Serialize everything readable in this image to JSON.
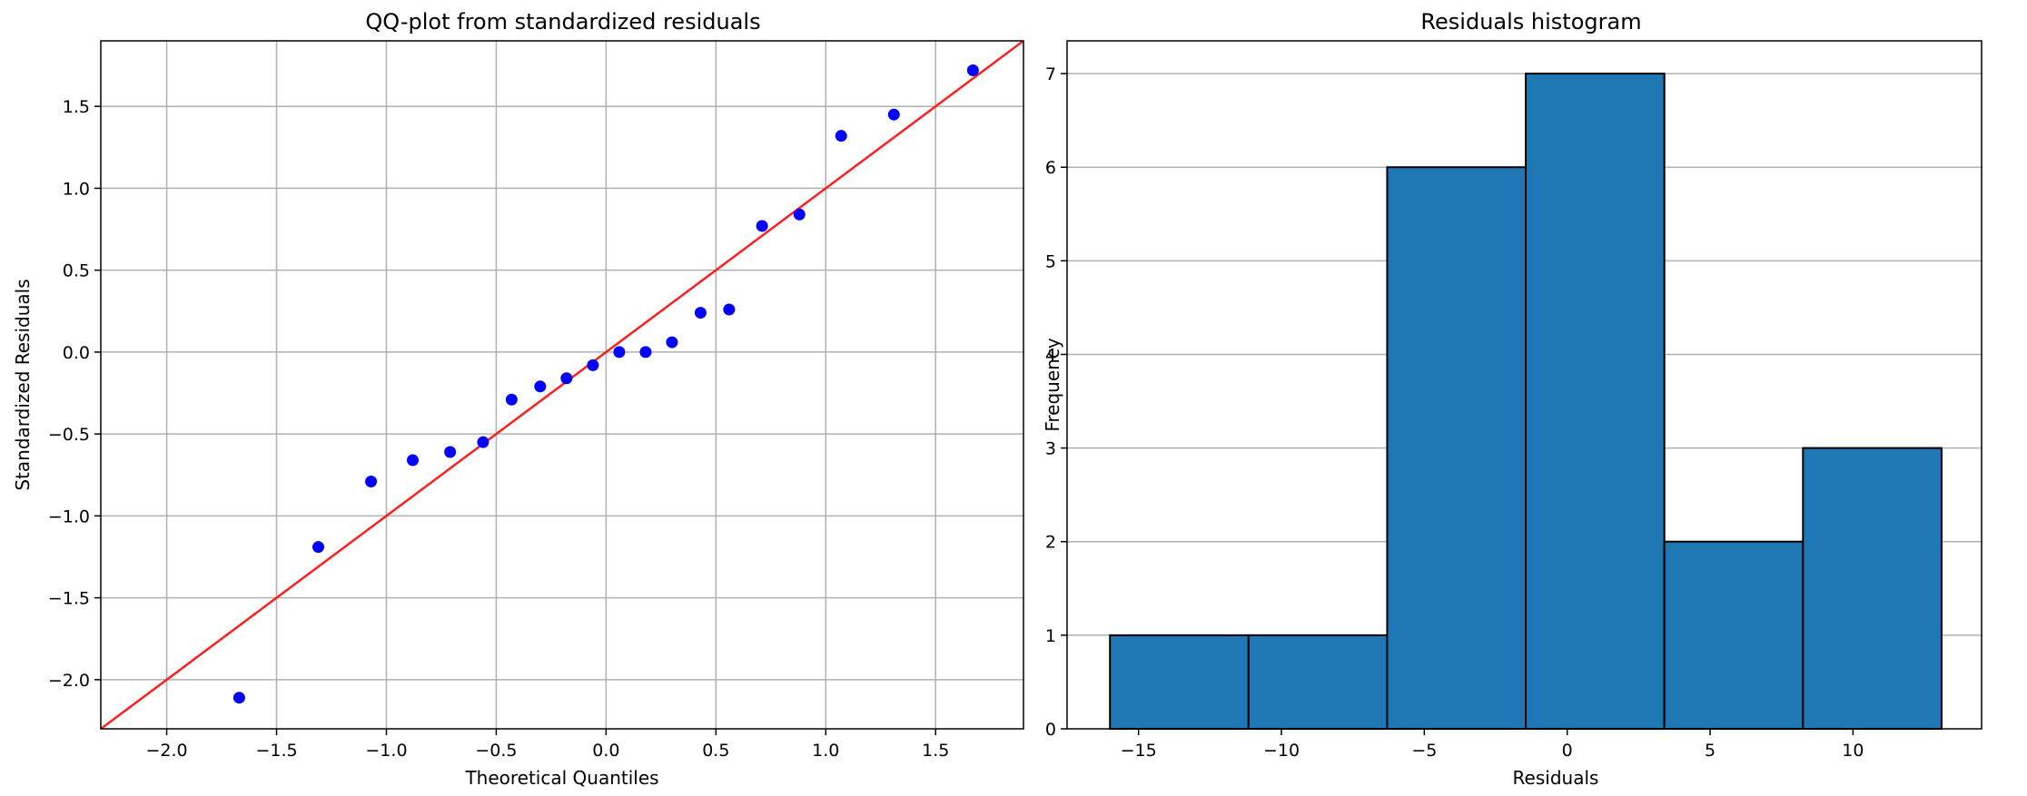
{
  "chart_data": [
    {
      "type": "scatter",
      "title": "QQ-plot from standardized residuals",
      "xlabel": "Theoretical Quantiles",
      "ylabel": "Standardized Residuals",
      "xlim": [
        -2.3,
        1.9
      ],
      "ylim": [
        -2.3,
        1.9
      ],
      "xticks": [
        -2.0,
        -1.5,
        -1.0,
        -0.5,
        0.0,
        0.5,
        1.0,
        1.5
      ],
      "xtick_labels": [
        "−2.0",
        "−1.5",
        "−1.0",
        "−0.5",
        "0.0",
        "0.5",
        "1.0",
        "1.5"
      ],
      "yticks": [
        -2.0,
        -1.5,
        -1.0,
        -0.5,
        0.0,
        0.5,
        1.0,
        1.5
      ],
      "ytick_labels": [
        "−2.0",
        "−1.5",
        "−1.0",
        "−0.5",
        "0.0",
        "0.5",
        "1.0",
        "1.5"
      ],
      "grid": true,
      "point_color": "#0000ff",
      "line_color": "#ff2020",
      "reference_line": {
        "slope": 1,
        "intercept": 0
      },
      "points": [
        {
          "x": -1.67,
          "y": -2.11
        },
        {
          "x": -1.31,
          "y": -1.19
        },
        {
          "x": -1.07,
          "y": -0.79
        },
        {
          "x": -0.88,
          "y": -0.66
        },
        {
          "x": -0.71,
          "y": -0.61
        },
        {
          "x": -0.56,
          "y": -0.55
        },
        {
          "x": -0.43,
          "y": -0.29
        },
        {
          "x": -0.3,
          "y": -0.21
        },
        {
          "x": -0.18,
          "y": -0.16
        },
        {
          "x": -0.06,
          "y": -0.08
        },
        {
          "x": 0.06,
          "y": 0.0
        },
        {
          "x": 0.18,
          "y": 0.0
        },
        {
          "x": 0.3,
          "y": 0.06
        },
        {
          "x": 0.43,
          "y": 0.24
        },
        {
          "x": 0.56,
          "y": 0.26
        },
        {
          "x": 0.71,
          "y": 0.77
        },
        {
          "x": 0.88,
          "y": 0.84
        },
        {
          "x": 1.07,
          "y": 1.32
        },
        {
          "x": 1.31,
          "y": 1.45
        },
        {
          "x": 1.67,
          "y": 1.72
        }
      ]
    },
    {
      "type": "bar",
      "title": "Residuals histogram",
      "xlabel": "Residuals",
      "ylabel": "Frequency",
      "xlim": [
        -17.5,
        14.5
      ],
      "ylim": [
        0,
        7.35
      ],
      "xticks": [
        -15,
        -10,
        -5,
        0,
        5,
        10
      ],
      "xtick_labels": [
        "−15",
        "−10",
        "−5",
        "0",
        "5",
        "10"
      ],
      "yticks": [
        0,
        1,
        2,
        3,
        4,
        5,
        6,
        7
      ],
      "ytick_labels": [
        "0",
        "1",
        "2",
        "3",
        "4",
        "5",
        "6",
        "7"
      ],
      "grid": "y",
      "bar_color": "#1f77b4",
      "edge_color": "#000000",
      "bins": [
        {
          "x0": -16.0,
          "x1": -11.15,
          "count": 1
        },
        {
          "x0": -11.15,
          "x1": -6.3,
          "count": 1
        },
        {
          "x0": -6.3,
          "x1": -1.45,
          "count": 6
        },
        {
          "x0": -1.45,
          "x1": 3.4,
          "count": 7
        },
        {
          "x0": 3.4,
          "x1": 8.25,
          "count": 2
        },
        {
          "x0": 8.25,
          "x1": 13.1,
          "count": 3
        }
      ]
    }
  ]
}
